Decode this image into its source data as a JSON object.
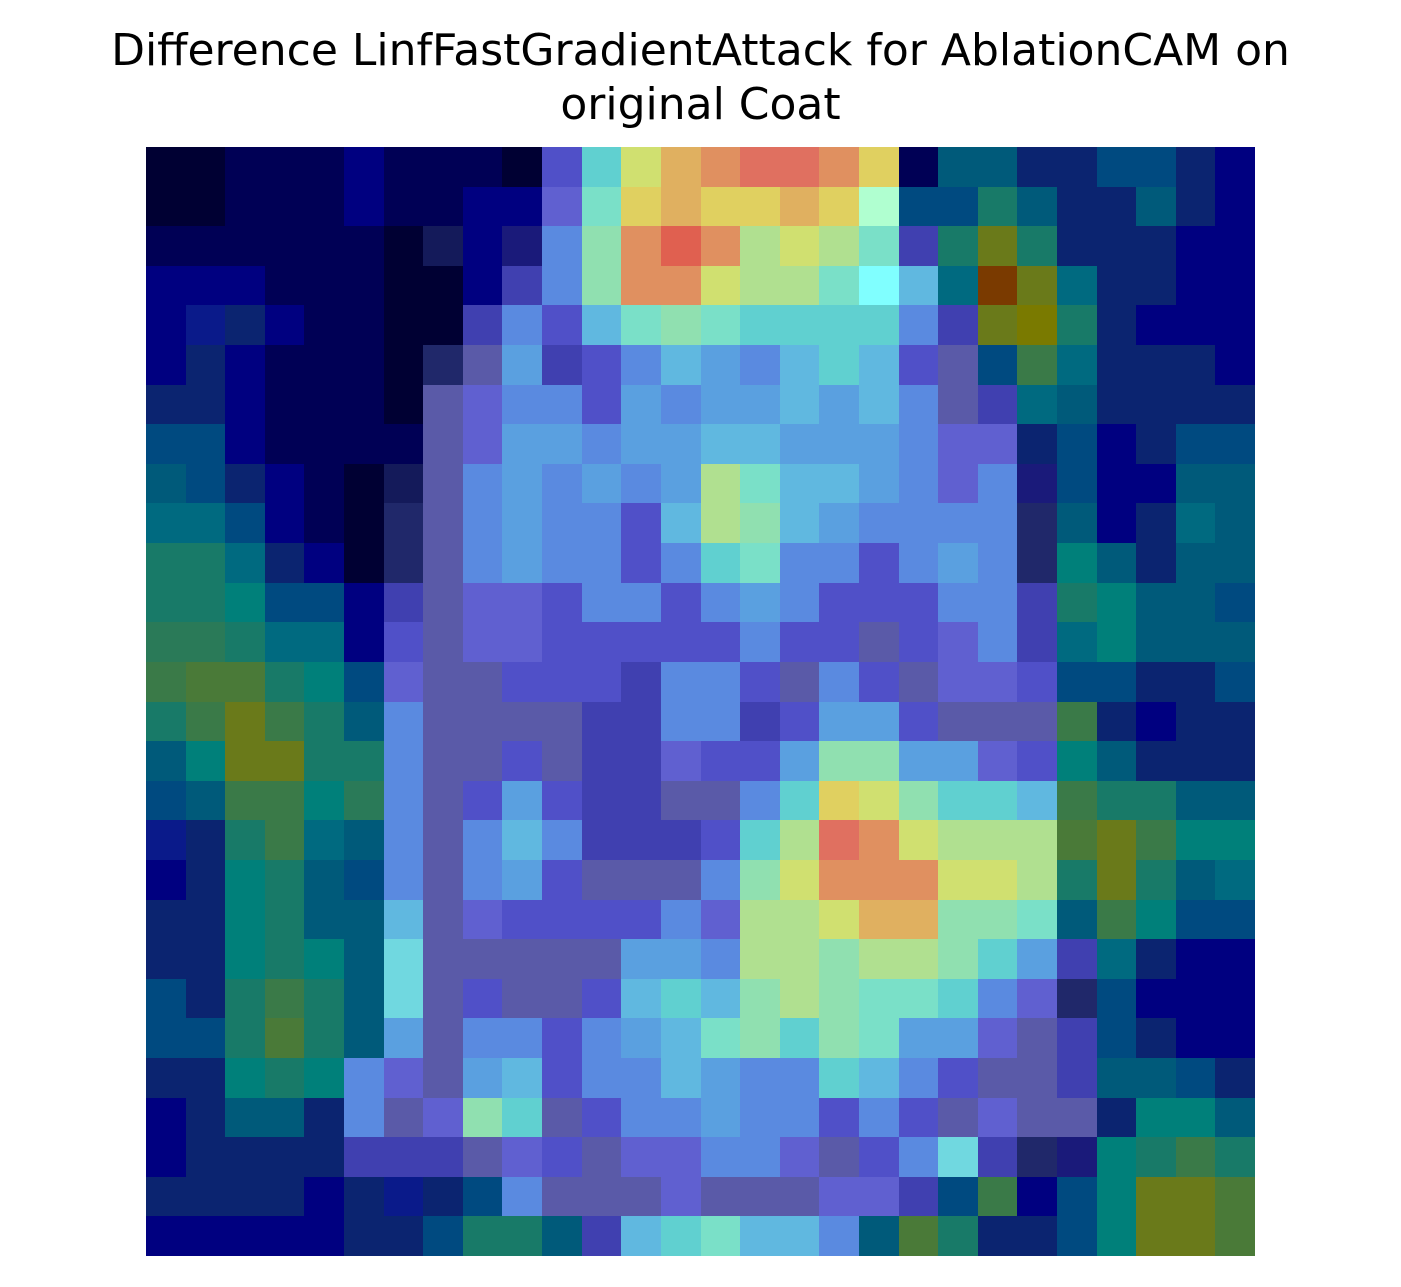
{
  "title": {
    "line1": "Difference LinfFastGradientAttack for AblationCAM on",
    "line2": "original Coat"
  },
  "image": {
    "description": "28x28 overlay of CAM attribution on coat image",
    "palette": {
      "dn": "#000033",
      "n0": "#000055",
      "n1": "#000080",
      "n2": "#0a1a8a",
      "nb": "#0b2470",
      "nn": "#1a1a7a",
      "ns": "#141a5a",
      "nd": "#20286a",
      "tb": "#004a80",
      "td": "#005a7a",
      "t1": "#006a80",
      "t2": "#00807a",
      "t3": "#187a68",
      "t4": "#2a7a58",
      "g1": "#3a7a48",
      "g2": "#4a7a38",
      "g3": "#6a7a1a",
      "g4": "#7a7a00",
      "br": "#7a3a00",
      "p1": "#5a5aa8",
      "p2": "#6060d0",
      "p3": "#5050c8",
      "p4": "#4040b0",
      "b1": "#5a8ae0",
      "b2": "#5aa0e0",
      "b3": "#60b8e0",
      "b4": "#70d8e0",
      "c1": "#60d0d0",
      "c2": "#7ae0c8",
      "c3": "#90e0b0",
      "c4": "#b0e090",
      "y1": "#d0e070",
      "y2": "#e0d060",
      "y3": "#e0b060",
      "o1": "#e09060",
      "o2": "#e07060",
      "r1": "#e06050",
      "w1": "#b0ffd0",
      "w2": "#80ffff"
    },
    "grid": [
      "dn dn n0 n0 n0 n1 n0 n0 n0 dn p3 c1 y1 y3 o1 o2 o2 o1 y2 n0 td td nb nb tb tb nb n1",
      "dn dn n0 n0 n0 n1 n0 n0 n1 n1 p2 c2 y2 y3 y2 y2 y3 y2 w1 tb tb t3 td nb nb td nb n1",
      "n0 n0 n0 n0 n0 n0 dn ns n1 nn b1 c3 o1 r1 o1 c4 y1 c4 c2 p4 t3 g3 t3 nb nb nb n1 n1",
      "n1 n1 n1 n0 n0 n0 dn dn n1 p4 b1 c3 o1 o1 y1 c4 c4 c2 w2 b3 t1 br g3 t1 nb nb n1 n1",
      "n1 n2 nb n1 n0 n0 dn dn p4 b1 p3 b3 c2 c3 c2 c1 c1 c1 c1 b1 p4 g3 g4 t3 nb n1 n1 n1",
      "n1 nb n1 n0 n0 n0 dn nd p1 b2 p4 p3 b1 b3 b2 b1 b3 c1 b3 p3 p1 tb g1 t1 nb nb nb n1",
      "nb nb n1 n0 n0 n0 dn p1 p2 b1 b1 p3 b2 b1 b2 b2 b3 b2 b3 b1 p1 p4 t1 td nb nb nb nb",
      "tb tb n1 n0 n0 n0 n0 p1 p2 b2 b2 b1 b2 b2 b3 b3 b2 b2 b2 b1 p2 p2 nb tb n1 nb tb tb",
      "td tb nb n1 n0 dn ns p1 b1 b2 b1 b2 b1 b2 c4 c2 b3 b3 b2 b1 p2 b1 nn tb n1 n1 td td",
      "t1 t1 tb n1 n0 dn nd p1 b1 b2 b1 b1 p3 b3 c4 c3 b3 b2 b1 b1 b1 b1 nd td n1 nb t1 td",
      "t3 t3 t1 nb n1 dn nd p1 b1 b2 b1 b1 p3 b1 c1 c2 b1 b1 p3 b1 b2 b1 nd t2 td nb td td",
      "t3 t3 t2 tb tb n1 p4 p1 p2 p2 p3 b1 b1 p3 b1 b2 b1 p3 p3 p3 b1 b1 p4 t3 t2 td td tb",
      "t4 t4 t3 t1 t1 n1 p3 p1 p2 p2 p3 p3 p3 p3 p3 b1 p3 p3 p1 p3 p2 b1 p4 t1 t2 td td td",
      "g1 g2 g2 t3 t2 tb p2 p1 p1 p3 p3 p3 p4 b1 b1 p3 p1 b1 p3 p1 p2 p2 p3 tb tb nb nb tb",
      "t3 g1 g3 g1 t3 td b1 p1 p1 p1 p1 p4 p4 b1 b1 p4 p3 b2 b2 p3 p1 p1 p1 g1 nb n1 nb nb",
      "td t2 g3 g3 t3 t3 b1 p1 p1 p3 p1 p4 p4 p2 p3 p3 b2 c3 c3 b2 b2 p2 p3 t2 td nb nb nb",
      "tb td g1 g1 t2 t4 b1 p1 p3 b2 p3 p4 p4 p1 p1 b1 c1 y2 y1 c3 c1 c1 b3 g1 t3 t3 td td",
      "n2 nb t3 g1 t1 td b1 p1 b1 b3 b1 p4 p4 p4 p3 c1 c4 o2 o1 y1 c4 c4 c4 g2 g3 g1 t2 t2",
      "n1 nb t2 t3 td tb b1 p1 b1 b2 p3 p1 p1 p1 b1 c3 y1 o1 o1 o1 y1 y1 c4 t3 g3 t3 td t1",
      "nb nb t2 t3 td td b3 p1 p2 p3 p3 p3 p3 b1 p2 c4 c4 y1 y3 y3 c3 c3 c2 td g1 t2 tb tb",
      "nb nb t2 t3 t2 td b4 p1 p1 p1 p1 p1 b2 b2 b1 c4 c4 c3 c4 c4 c3 c1 b2 p4 t1 nb n1 n1",
      "tb nb t3 g1 t3 td b4 p1 p3 p1 p1 p3 b3 c1 b3 c3 c4 c3 c2 c2 c1 b1 p2 nd tb n1 n1 n1",
      "tb tb t3 g2 t3 td b2 p1 b1 b1 p3 b1 b2 b3 c2 c3 c1 c3 c2 b2 b2 p2 p1 p4 tb nb n1 n1",
      "nb nb t2 t3 t2 b1 p2 p1 b2 b3 p3 b1 b1 b3 b2 b1 b1 c1 b3 b1 p3 p1 p1 p4 td td tb nb",
      "n1 nb td td nb b1 p1 p2 c3 c1 p1 p3 b1 b1 b2 b1 b1 p3 b1 p3 p1 p2 p1 p1 nb t2 t2 td",
      "n1 nb nb nb nb p4 p4 p4 p1 p2 p3 p1 p2 p2 b1 b1 p2 p1 p3 b1 b4 p4 nd nn t2 t3 g1 t3",
      "nb nb nb nb n1 nb n2 nb tb b1 p1 p1 p1 p2 p1 p1 p1 p2 p2 p4 tb g1 n1 tb t2 g3 g3 g2",
      "n1 n1 n1 n1 n1 nb nb tb t3 t3 td p4 b3 c1 c2 b3 b3 b1 td g2 t3 nb nb tb t2 g3 g3 g2"
    ]
  }
}
